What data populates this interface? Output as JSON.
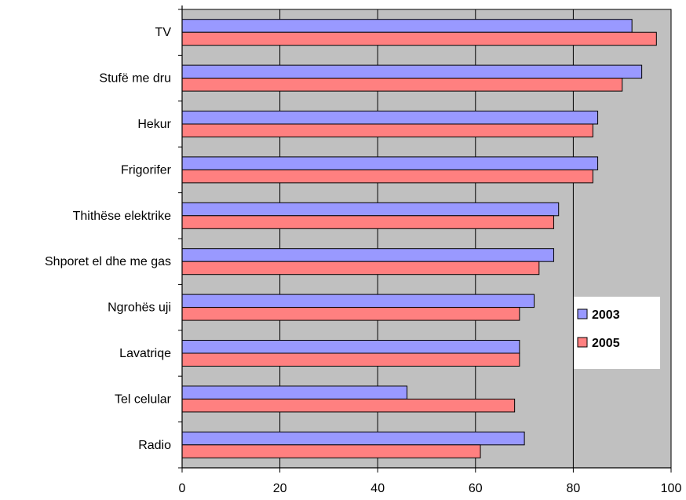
{
  "chart_data": {
    "type": "bar",
    "orientation": "horizontal",
    "categories": [
      "TV",
      "Stufë me dru",
      "Hekur",
      "Frigorifer",
      "Thithëse elektrike",
      "Shporet el dhe me gas",
      "Ngrohës uji",
      "Lavatriqe",
      "Tel celular",
      "Radio"
    ],
    "series": [
      {
        "name": "2003",
        "color": "#9999ff",
        "values": [
          92,
          94,
          85,
          85,
          77,
          76,
          72,
          69,
          46,
          70
        ]
      },
      {
        "name": "2005",
        "color": "#ff8080",
        "values": [
          97,
          90,
          84,
          84,
          76,
          73,
          69,
          69,
          68,
          61
        ]
      }
    ],
    "xlim": [
      0,
      100
    ],
    "xticks": [
      "0",
      "20",
      "40",
      "60",
      "80",
      "100"
    ],
    "grid": true,
    "plot_background": "#c0c0c0",
    "legend_position": "right-inside"
  }
}
